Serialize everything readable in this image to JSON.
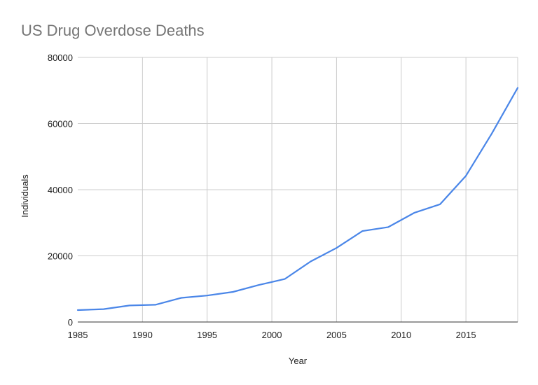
{
  "chart_data": {
    "type": "line",
    "title": "US Drug Overdose Deaths",
    "xlabel": "Year",
    "ylabel": "Individuals",
    "xlim": [
      1985,
      2019
    ],
    "ylim": [
      0,
      80000
    ],
    "x_ticks": [
      1985,
      1990,
      1995,
      2000,
      2005,
      2010,
      2015
    ],
    "y_ticks": [
      0,
      20000,
      40000,
      60000,
      80000
    ],
    "grid": true,
    "series": [
      {
        "color": "#4a86e8",
        "points": [
          {
            "x": 1985,
            "y": 3600
          },
          {
            "x": 1987,
            "y": 3900
          },
          {
            "x": 1989,
            "y": 5000
          },
          {
            "x": 1991,
            "y": 5200
          },
          {
            "x": 1993,
            "y": 7300
          },
          {
            "x": 1995,
            "y": 8000
          },
          {
            "x": 1997,
            "y": 9100
          },
          {
            "x": 1999,
            "y": 11200
          },
          {
            "x": 2001,
            "y": 13000
          },
          {
            "x": 2003,
            "y": 18300
          },
          {
            "x": 2005,
            "y": 22400
          },
          {
            "x": 2007,
            "y": 27500
          },
          {
            "x": 2009,
            "y": 28700
          },
          {
            "x": 2011,
            "y": 33000
          },
          {
            "x": 2013,
            "y": 35600
          },
          {
            "x": 2015,
            "y": 44200
          },
          {
            "x": 2017,
            "y": 57000
          },
          {
            "x": 2019,
            "y": 70800
          }
        ]
      }
    ]
  }
}
